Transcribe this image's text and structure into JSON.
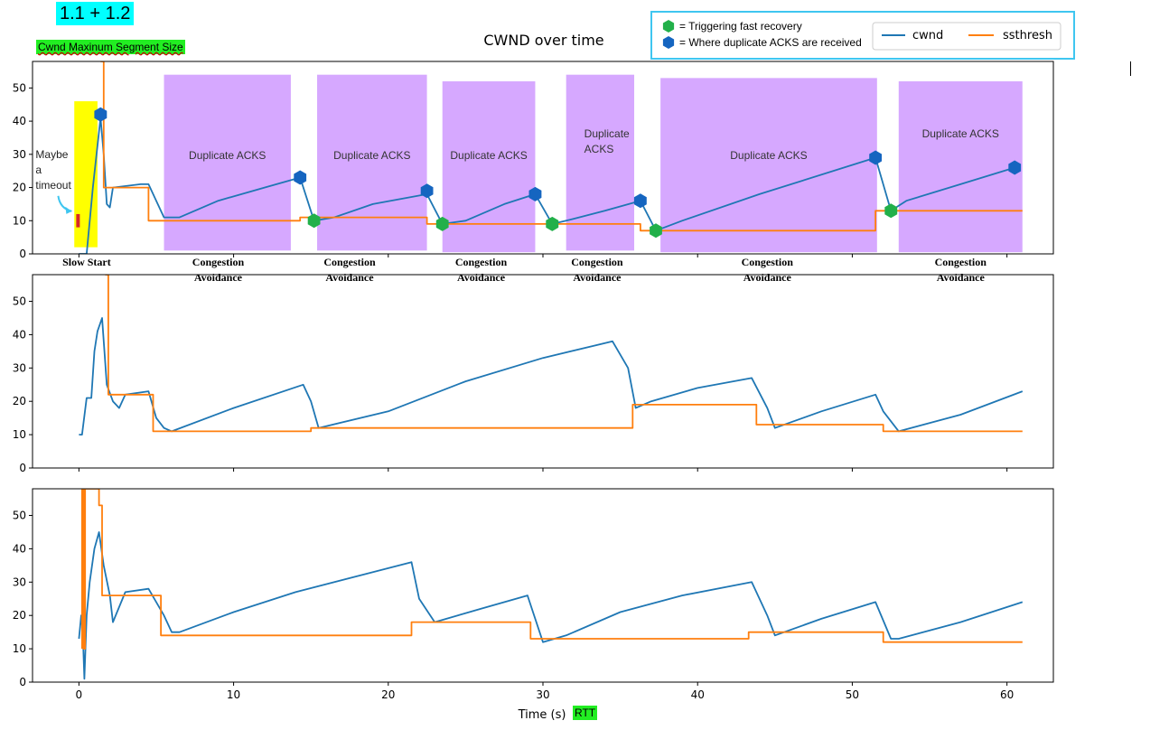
{
  "tags": {
    "top": "1.1 + 1.2",
    "cwnd": "Cwnd Maxinum Segment Size",
    "rtt": "RTT"
  },
  "colors": {
    "cwnd": "#1f77b4",
    "ssthresh": "#ff7f0e",
    "duplicate_region": "#d6a8ff",
    "slow_start_highlight": "#ffff00",
    "fast_recovery_marker": "#22b04a",
    "duplicate_ack_marker": "#1565c0",
    "legend_box_border": "#3fc6f0"
  },
  "chart_data": [
    {
      "type": "line",
      "title": "CWND over time",
      "xlim": [
        -3,
        63
      ],
      "ylim": [
        0,
        58
      ],
      "yticks": [
        0,
        10,
        20,
        30,
        40,
        50
      ],
      "legend": {
        "placement": "top-right",
        "entries": [
          "cwnd",
          "ssthresh"
        ]
      },
      "marker_legend": [
        {
          "symbol": "fast_recovery",
          "label": "= Triggering fast recovery"
        },
        {
          "symbol": "duplicate_ack",
          "label": "= Where duplicate ACKS are received"
        }
      ],
      "series": [
        {
          "name": "cwnd",
          "color": "#1f77b4",
          "x": [
            0,
            0.5,
            0.9,
            1.4,
            1.6,
            1.8,
            2.0,
            2.2,
            4.0,
            4.5,
            5.5,
            6.5,
            9,
            12,
            14.3,
            15.2,
            16.5,
            19,
            22.5,
            23.5,
            25,
            27.5,
            29.5,
            30.6,
            31.5,
            34,
            36.3,
            37.3,
            39,
            44,
            51.5,
            52.5,
            53.5,
            57,
            60.5
          ],
          "y": [
            0,
            0,
            20,
            41,
            30,
            15,
            14,
            20,
            21,
            21,
            11,
            11,
            16,
            20,
            23,
            10,
            11,
            15,
            18,
            9,
            10,
            15,
            18,
            9,
            10,
            13,
            16,
            7,
            10,
            18,
            29,
            13,
            16,
            21,
            26
          ]
        },
        {
          "name": "ssthresh",
          "color": "#ff7f0e",
          "x": [
            1.4,
            1.4,
            1.6,
            1.6,
            4.5,
            4.5,
            14.3,
            14.3,
            22.5,
            22.5,
            36.3,
            36.3,
            51.5,
            51.5,
            61
          ],
          "y": [
            58,
            58,
            58,
            20,
            20,
            10,
            10,
            11,
            11,
            9,
            9,
            7,
            7,
            13,
            13
          ]
        }
      ],
      "duplicate_regions": [
        {
          "x0": 5.5,
          "x1": 13.7,
          "y0": 1,
          "y1": 54,
          "label": "Duplicate ACKS"
        },
        {
          "x0": 15.4,
          "x1": 22.5,
          "y0": 1,
          "y1": 54,
          "label": "Duplicate ACKS"
        },
        {
          "x0": 23.5,
          "x1": 29.5,
          "y0": 0.5,
          "y1": 52,
          "label": "Duplicate ACKS"
        },
        {
          "x0": 31.5,
          "x1": 35.9,
          "y0": 1,
          "y1": 54,
          "label": "Duplicate ACKS"
        },
        {
          "x0": 37.6,
          "x1": 51.6,
          "y0": 0.5,
          "y1": 53,
          "label": "Duplicate ACKS"
        },
        {
          "x0": 53.0,
          "x1": 61.0,
          "y0": 0.5,
          "y1": 52,
          "label": "Duplicate ACKS"
        }
      ],
      "slow_start_highlight": {
        "x0": -0.3,
        "x1": 1.2,
        "y0": 2,
        "y1": 46
      },
      "fast_recovery_markers": [
        {
          "x": 15.2,
          "y": 10
        },
        {
          "x": 23.5,
          "y": 9
        },
        {
          "x": 30.6,
          "y": 9
        },
        {
          "x": 37.3,
          "y": 7
        },
        {
          "x": 52.5,
          "y": 13
        }
      ],
      "duplicate_ack_markers": [
        {
          "x": 1.4,
          "y": 42
        },
        {
          "x": 14.3,
          "y": 23
        },
        {
          "x": 22.5,
          "y": 19
        },
        {
          "x": 29.5,
          "y": 18
        },
        {
          "x": 36.3,
          "y": 16
        },
        {
          "x": 51.5,
          "y": 29
        },
        {
          "x": 60.5,
          "y": 26
        }
      ],
      "annotations": [
        {
          "text_lines": [
            "Maybe",
            "a",
            "timeout"
          ],
          "x": -2.8,
          "y": 30
        }
      ],
      "phase_labels": [
        {
          "lines": [
            "Slow Start"
          ],
          "x": 0.5
        },
        {
          "lines": [
            "Congestion",
            "Avoidance"
          ],
          "x": 9
        },
        {
          "lines": [
            "Congestion",
            "Avoidance"
          ],
          "x": 17.5
        },
        {
          "lines": [
            "Congestion",
            "Avoidance"
          ],
          "x": 26
        },
        {
          "lines": [
            "Congestion",
            "Avoidance"
          ],
          "x": 33.5
        },
        {
          "lines": [
            "Congestion",
            "Avoidance"
          ],
          "x": 44.5
        },
        {
          "lines": [
            "Congestion",
            "Avoidance"
          ],
          "x": 57
        }
      ]
    },
    {
      "type": "line",
      "title": "",
      "xlim": [
        -3,
        63
      ],
      "ylim": [
        0,
        58
      ],
      "yticks": [
        0,
        10,
        20,
        30,
        40,
        50
      ],
      "series": [
        {
          "name": "cwnd",
          "color": "#1f77b4",
          "x": [
            0,
            0.2,
            0.5,
            0.8,
            1.0,
            1.2,
            1.5,
            1.8,
            2.2,
            2.6,
            3.0,
            4.5,
            5.0,
            5.5,
            6.0,
            10,
            14.5,
            15.0,
            15.5,
            20,
            25,
            30,
            34.5,
            35.5,
            36.0,
            37,
            40,
            43.5,
            44.5,
            45,
            48,
            51.5,
            52.0,
            53,
            57,
            61
          ],
          "y": [
            10,
            10,
            21,
            21,
            35,
            41,
            45,
            25,
            20,
            18,
            22,
            23,
            15,
            12,
            11,
            18,
            25,
            20,
            12,
            17,
            26,
            33,
            38,
            30,
            18,
            20,
            24,
            27,
            18,
            12,
            17,
            22,
            17,
            11,
            16,
            23
          ]
        },
        {
          "name": "ssthresh",
          "color": "#ff7f0e",
          "x": [
            1.7,
            1.7,
            1.9,
            1.9,
            4.8,
            4.8,
            15.0,
            15.0,
            35.8,
            35.8,
            43.8,
            43.8,
            52.0,
            52.0,
            61
          ],
          "y": [
            58,
            58,
            58,
            22,
            22,
            11,
            11,
            12,
            12,
            19,
            19,
            13,
            13,
            11,
            11
          ]
        }
      ]
    },
    {
      "type": "line",
      "title": "",
      "xlim": [
        -3,
        63
      ],
      "ylim": [
        0,
        58
      ],
      "yticks": [
        0,
        10,
        20,
        30,
        40,
        50
      ],
      "xticks": [
        0,
        10,
        20,
        30,
        40,
        50,
        60
      ],
      "xlabel": "Time (s)",
      "series": [
        {
          "name": "cwnd",
          "color": "#1f77b4",
          "x": [
            0,
            0.15,
            0.25,
            0.35,
            0.5,
            0.7,
            1.0,
            1.3,
            1.6,
            2.0,
            2.2,
            3,
            4.5,
            5.5,
            6.0,
            6.5,
            10,
            14,
            21.5,
            22.0,
            23.0,
            26,
            29,
            30.0,
            31.5,
            35,
            39,
            43.5,
            44.5,
            45,
            48,
            51.5,
            52.5,
            53,
            57,
            61
          ],
          "y": [
            13,
            20,
            15,
            1,
            20,
            30,
            40,
            45,
            35,
            26,
            18,
            27,
            28,
            20,
            15,
            15,
            21,
            27,
            36,
            25,
            18,
            22,
            26,
            12,
            14,
            21,
            26,
            30,
            20,
            14,
            19,
            24,
            13,
            13,
            18,
            24
          ]
        },
        {
          "name": "ssthresh",
          "color": "#ff7f0e",
          "x": [
            0.2,
            0.2,
            0.3,
            0.3,
            0.4,
            0.4,
            1.3,
            1.3,
            1.5,
            1.5,
            5.3,
            5.3,
            21.5,
            21.5,
            29.2,
            29.2,
            43.3,
            43.3,
            52.0,
            52.0,
            61
          ],
          "y": [
            10,
            58,
            58,
            10,
            10,
            58,
            58,
            53,
            53,
            26,
            26,
            14,
            14,
            18,
            18,
            13,
            13,
            15,
            15,
            12,
            12
          ]
        }
      ]
    }
  ]
}
